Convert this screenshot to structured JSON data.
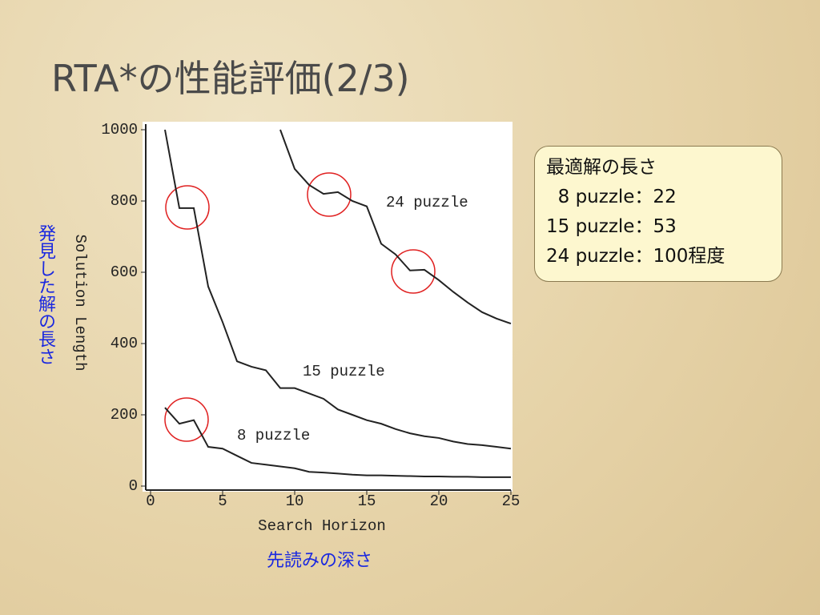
{
  "title": "RTA*の性能評価(2/3)",
  "note": {
    "lines": [
      "最適解の長さ",
      "  8 puzzle：22",
      "15 puzzle：53",
      "24 puzzle：100程度"
    ]
  },
  "y_label_ja": "発見した解の長さ",
  "x_label_ja": "先読みの深さ",
  "chart_data": {
    "type": "line",
    "x_label": "Search Horizon",
    "y_label": "Solution Length",
    "x": [
      1,
      2,
      3,
      4,
      5,
      6,
      7,
      8,
      9,
      10,
      11,
      12,
      13,
      14,
      15,
      16,
      17,
      18,
      19,
      20,
      21,
      22,
      23,
      24,
      25
    ],
    "series": [
      {
        "name": "8 puzzle",
        "color": "#222222",
        "values": [
          220,
          175,
          185,
          110,
          105,
          85,
          65,
          60,
          55,
          50,
          40,
          38,
          35,
          32,
          30,
          30,
          29,
          28,
          27,
          27,
          26,
          26,
          25,
          25,
          25
        ]
      },
      {
        "name": "15 puzzle",
        "color": "#222222",
        "values": [
          1000,
          780,
          780,
          560,
          460,
          350,
          335,
          325,
          275,
          275,
          260,
          245,
          215,
          200,
          185,
          175,
          160,
          148,
          140,
          135,
          125,
          118,
          115,
          110,
          105
        ]
      },
      {
        "name": "24 puzzle",
        "color": "#222222",
        "values": [
          null,
          null,
          null,
          null,
          null,
          null,
          null,
          null,
          1000,
          890,
          845,
          820,
          825,
          800,
          785,
          680,
          650,
          605,
          607,
          578,
          545,
          515,
          488,
          470,
          456
        ]
      }
    ],
    "xlim": [
      0,
      25
    ],
    "xticks": [
      0,
      5,
      10,
      15,
      20,
      25
    ],
    "ylim": [
      0,
      1000
    ],
    "yticks": [
      0,
      200,
      400,
      600,
      800,
      1000
    ]
  }
}
